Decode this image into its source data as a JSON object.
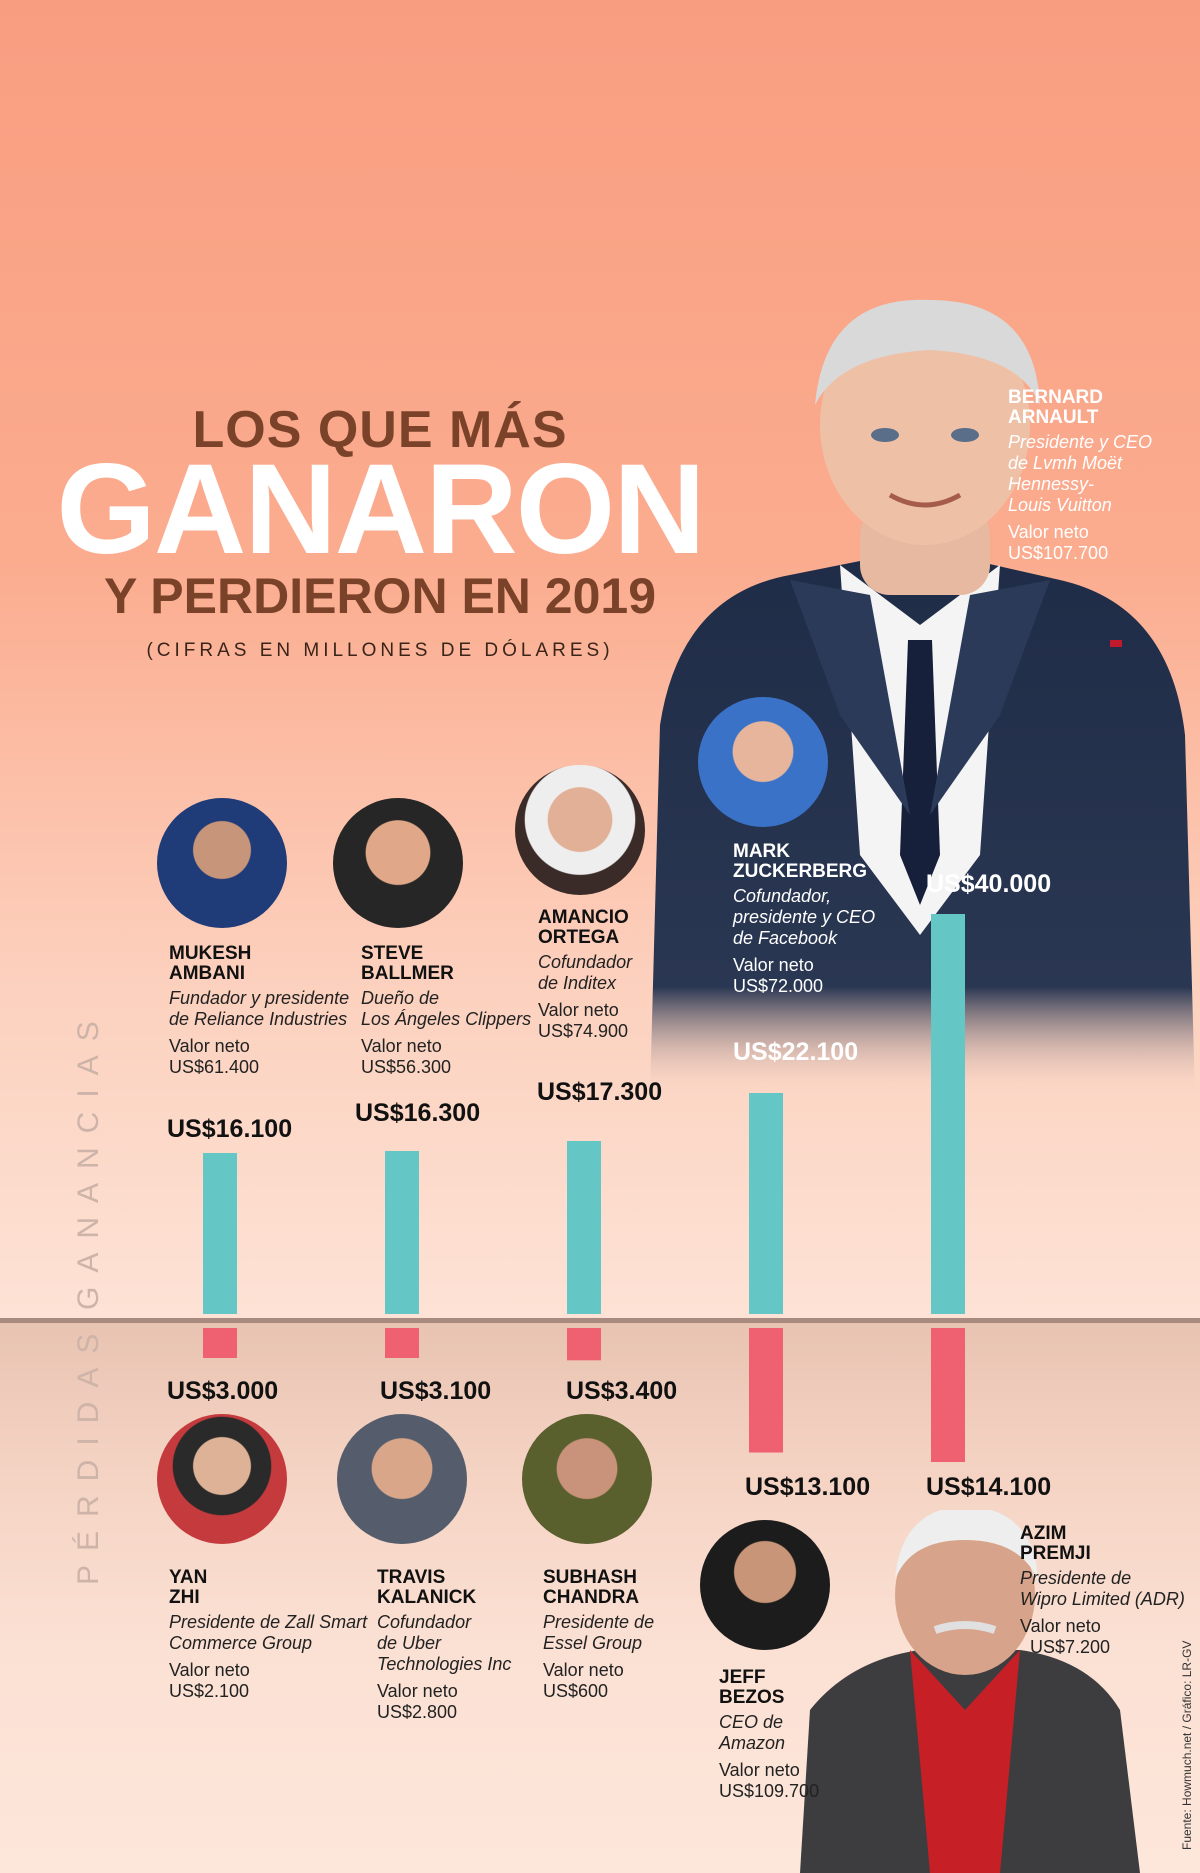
{
  "title": {
    "line1": "LOS QUE MÁS",
    "line2": "GANARON",
    "line3": "Y PERDIERON EN 2019",
    "subtitle": "(CIFRAS EN MILLONES DE DÓLARES)"
  },
  "axis": {
    "gains_label": "GANANCIAS",
    "losses_label": "PÉRDIDAS"
  },
  "colors": {
    "gain_bar": "#65c6c6",
    "loss_bar": "#ef6170",
    "background_top": "#f99d80",
    "title_brown": "#7a4329"
  },
  "people": {
    "arnault": {
      "name1": "BERNARD",
      "name2": "ARNAULT",
      "role": [
        "Presidente y CEO",
        "de Lvmh Moët",
        "Hennessy-",
        "Louis Vuitton"
      ],
      "nw_label": "Valor neto",
      "nw_value": "US$107.700"
    },
    "zuckerberg": {
      "name1": "MARK",
      "name2": "ZUCKERBERG",
      "role": [
        "Cofundador,",
        "presidente  y CEO",
        "de Facebook"
      ],
      "nw_label": "Valor neto",
      "nw_value": "US$72.000"
    },
    "ortega": {
      "name1": "AMANCIO",
      "name2": "ORTEGA",
      "role": [
        "Cofundador",
        "de Inditex"
      ],
      "nw_label": "Valor neto",
      "nw_value": "US$74.900"
    },
    "ballmer": {
      "name1": "STEVE",
      "name2": "BALLMER",
      "role": [
        "Dueño de",
        "Los Ángeles Clippers"
      ],
      "nw_label": "Valor neto",
      "nw_value": "US$56.300"
    },
    "ambani": {
      "name1": "MUKESH",
      "name2": "AMBANI",
      "role": [
        "Fundador y presidente",
        "de Reliance Industries"
      ],
      "nw_label": "Valor neto",
      "nw_value": "US$61.400"
    },
    "yan": {
      "name1": "YAN",
      "name2": "ZHI",
      "role": [
        "Presidente de Zall Smart",
        "Commerce Group"
      ],
      "nw_label": "Valor neto",
      "nw_value": "US$2.100"
    },
    "kalanick": {
      "name1": "TRAVIS",
      "name2": "KALANICK",
      "role": [
        "Cofundador",
        "de Uber",
        "Technologies Inc"
      ],
      "nw_label": "Valor neto",
      "nw_value": "US$2.800"
    },
    "chandra": {
      "name1": "SUBHASH",
      "name2": "CHANDRA",
      "role": [
        "Presidente de",
        "Essel Group"
      ],
      "nw_label": "Valor neto",
      "nw_value": "US$600"
    },
    "bezos": {
      "name1": "JEFF",
      "name2": "BEZOS",
      "role": [
        "CEO de",
        "Amazon"
      ],
      "nw_label": "Valor neto",
      "nw_value": "US$109.700"
    },
    "premji": {
      "name1": "AZIM",
      "name2": "PREMJI",
      "role": [
        "Presidente de",
        "Wipro Limited (ADR)"
      ],
      "nw_label": "Valor neto",
      "nw_value": "  US$7.200"
    }
  },
  "chart_data": {
    "type": "bar",
    "units": "millones de dólares",
    "series": [
      {
        "name": "GANANCIAS",
        "categories": [
          "MUKESH AMBANI",
          "STEVE BALLMER",
          "AMANCIO ORTEGA",
          "MARK ZUCKERBERG",
          "BERNARD ARNAULT"
        ],
        "values": [
          16100,
          16300,
          17300,
          22100,
          40000
        ],
        "labels": [
          "US$16.100",
          "US$16.300",
          "US$17.300",
          "US$22.100",
          "US$40.000"
        ]
      },
      {
        "name": "PÉRDIDAS",
        "categories": [
          "YAN ZHI",
          "TRAVIS KALANICK",
          "SUBHASH CHANDRA",
          "JEFF BEZOS",
          "AZIM PREMJI"
        ],
        "values": [
          3000,
          3100,
          3400,
          13100,
          14100
        ],
        "labels": [
          "US$3.000",
          "US$3.100",
          "US$3.400",
          "US$13.100",
          "US$14.100"
        ]
      }
    ]
  },
  "source": "Fuente: Howmuch.net / Gráfico: LR-GV"
}
